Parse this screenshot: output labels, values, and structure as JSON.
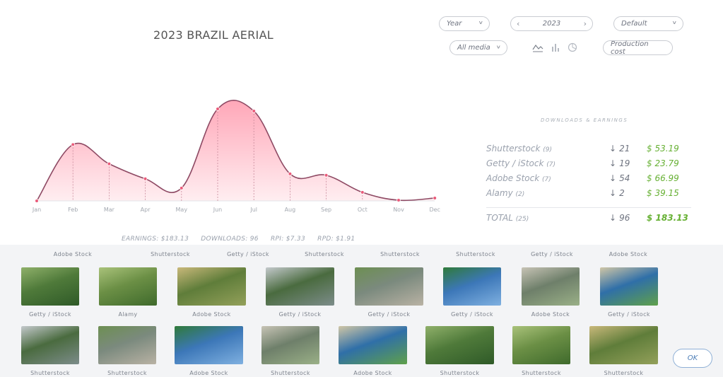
{
  "title": "2023 BRAZIL AERIAL",
  "controls": {
    "period": "Year",
    "year": "2023",
    "sort": "Default",
    "media": "All media",
    "production_cost": "Production cost"
  },
  "chart_types": [
    "line-chart-icon",
    "bar-chart-icon",
    "pie-chart-icon"
  ],
  "colors": {
    "line": "#8e4a64",
    "fill_top": "#ffa7b8",
    "fill_bottom": "#ffeef1",
    "point": "#ea5b7a",
    "earnings": "#66b033"
  },
  "chart_data": {
    "type": "area",
    "categories": [
      "Jan",
      "Feb",
      "Mar",
      "Apr",
      "May",
      "Jun",
      "Jul",
      "Aug",
      "Sep",
      "Oct",
      "Nov",
      "Dec"
    ],
    "values": [
      0,
      7.9,
      5.2,
      3.1,
      1.8,
      12.9,
      12.6,
      3.8,
      3.6,
      1.2,
      0.1,
      0.4
    ]
  },
  "stats": {
    "heading": "DOWNLOADS & EARNINGS",
    "rows": [
      {
        "name": "Shutterstock",
        "count": "(9)",
        "downloads": "21",
        "earnings": "$ 53.19"
      },
      {
        "name": "Getty / iStock",
        "count": "(7)",
        "downloads": "19",
        "earnings": "$ 23.79"
      },
      {
        "name": "Adobe Stock",
        "count": "(7)",
        "downloads": "54",
        "earnings": "$ 66.99"
      },
      {
        "name": "Alamy",
        "count": "(2)",
        "downloads": "2",
        "earnings": "$ 39.15"
      }
    ],
    "total": {
      "name": "TOTAL",
      "count": "(25)",
      "downloads": "96",
      "earnings": "$ 183.13"
    }
  },
  "summary": {
    "earnings": "EARNINGS: $183.13",
    "downloads": "DOWNLOADS: 96",
    "rpi": "RPI: $7.33",
    "rpd": "RPD: $1.91"
  },
  "gallery": {
    "row0": [
      "Adobe Stock",
      "Shutterstock",
      "Getty / iStock",
      "Shutterstock",
      "Shutterstock",
      "Shutterstock",
      "Getty / iStock",
      "Adobe Stock"
    ],
    "row1": [
      "Getty / iStock",
      "Alamy",
      "Adobe Stock",
      "Getty / iStock",
      "Getty / iStock",
      "Getty / iStock",
      "Adobe Stock",
      "Getty / iStock"
    ],
    "row2": [
      "Shutterstock",
      "Shutterstock",
      "Adobe Stock",
      "Shutterstock",
      "Adobe Stock",
      "Shutterstock",
      "Shutterstock",
      "Shutterstock"
    ]
  },
  "ok_label": "OK"
}
